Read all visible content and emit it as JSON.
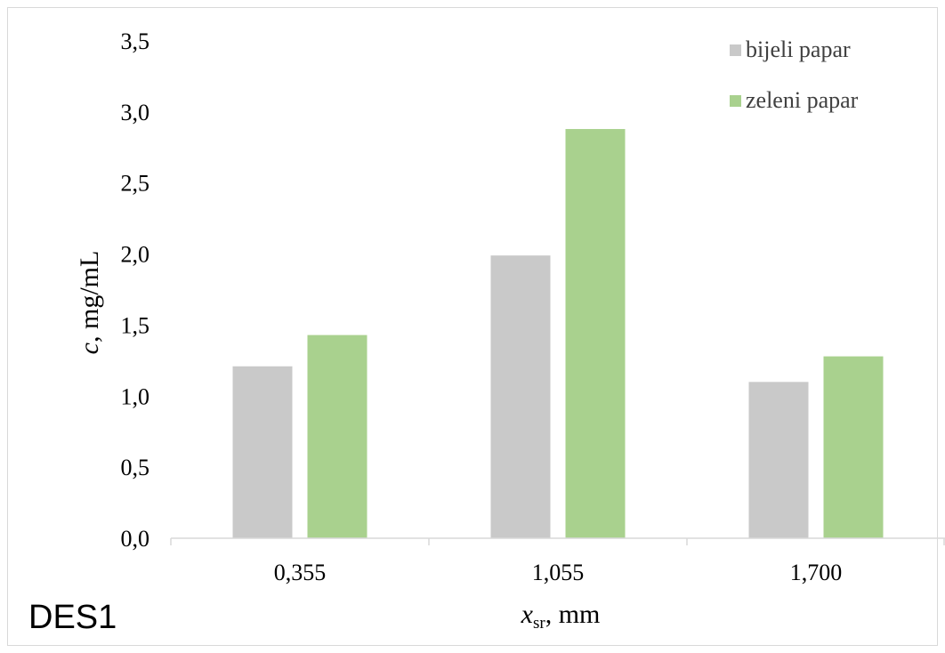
{
  "panel_label": "DES1",
  "chart_data": {
    "type": "bar",
    "categories": [
      "0,355",
      "1,055",
      "1,700"
    ],
    "series": [
      {
        "name": "bijeli papar",
        "values": [
          1.21,
          1.99,
          1.1
        ],
        "color": "#c9c9c9"
      },
      {
        "name": "zeleni papar",
        "values": [
          1.43,
          2.88,
          1.28
        ],
        "color": "#a9d18e"
      }
    ],
    "xlabel": {
      "italic": "x",
      "subscript": "sr",
      "rest": ", mm"
    },
    "ylabel": {
      "italic": "c",
      "rest": ", mg/mL"
    },
    "ylim": [
      0,
      3.5
    ],
    "yticks": [
      "0,0",
      "0,5",
      "1,0",
      "1,5",
      "2,0",
      "2,5",
      "3,0",
      "3,5"
    ],
    "grid": false,
    "legend_position": "top-right",
    "axis_color": "#d9d9d9"
  }
}
